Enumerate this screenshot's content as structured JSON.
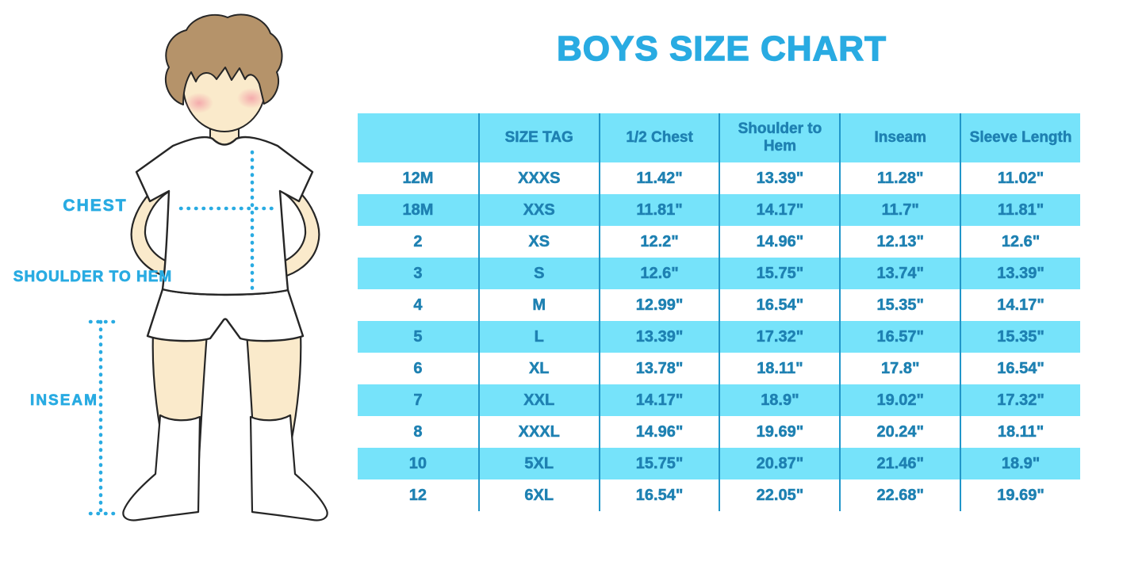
{
  "figure_labels": {
    "chest": "CHEST",
    "shoulder_to_hem": "SHOULDER TO HEM",
    "inseam": "INSEAM"
  },
  "colors": {
    "accent_blue": "#29ABE2",
    "table_text_blue": "#1E81B2",
    "cell_fill_blue": "#76E3FA",
    "divider_blue": "#2196C9",
    "skin": "#FAEACB",
    "hair_brown": "#B5936A",
    "blush_pink": "#F2909F"
  },
  "chart_data": {
    "type": "table",
    "title": "BOYS SIZE CHART",
    "columns": [
      "",
      "SIZE TAG",
      "1/2 Chest",
      "Shoulder to Hem",
      "Inseam",
      "Sleeve Length"
    ],
    "rows": [
      [
        "12M",
        "XXXS",
        "11.42\"",
        "13.39\"",
        "11.28\"",
        "11.02\""
      ],
      [
        "18M",
        "XXS",
        "11.81\"",
        "14.17\"",
        "11.7\"",
        "11.81\""
      ],
      [
        "2",
        "XS",
        "12.2\"",
        "14.96\"",
        "12.13\"",
        "12.6\""
      ],
      [
        "3",
        "S",
        "12.6\"",
        "15.75\"",
        "13.74\"",
        "13.39\""
      ],
      [
        "4",
        "M",
        "12.99\"",
        "16.54\"",
        "15.35\"",
        "14.17\""
      ],
      [
        "5",
        "L",
        "13.39\"",
        "17.32\"",
        "16.57\"",
        "15.35\""
      ],
      [
        "6",
        "XL",
        "13.78\"",
        "18.11\"",
        "17.8\"",
        "16.54\""
      ],
      [
        "7",
        "XXL",
        "14.17\"",
        "18.9\"",
        "19.02\"",
        "17.32\""
      ],
      [
        "8",
        "XXXL",
        "14.96\"",
        "19.69\"",
        "20.24\"",
        "18.11\""
      ],
      [
        "10",
        "5XL",
        "15.75\"",
        "20.87\"",
        "21.46\"",
        "18.9\""
      ],
      [
        "12",
        "6XL",
        "16.54\"",
        "22.05\"",
        "22.68\"",
        "19.69\""
      ]
    ]
  }
}
